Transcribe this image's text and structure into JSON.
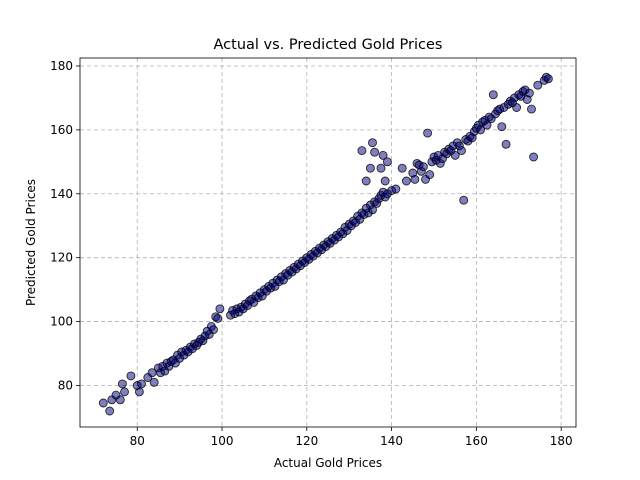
{
  "chart_data": {
    "type": "scatter",
    "title": "Actual vs. Predicted Gold Prices",
    "xlabel": "Actual Gold Prices",
    "ylabel": "Predicted Gold Prices",
    "xlim": [
      66.5,
      183.5
    ],
    "ylim": [
      67,
      182.5
    ],
    "xticks": [
      80,
      100,
      120,
      140,
      160,
      180
    ],
    "yticks": [
      80,
      100,
      120,
      140,
      160,
      180
    ],
    "grid": true,
    "marker_color": "#00007f",
    "marker_edge_color": "#000000",
    "marker_alpha": 0.5,
    "series": [
      {
        "points": [
          [
            72.0,
            74.5
          ],
          [
            73.5,
            72.0
          ],
          [
            74.0,
            75.5
          ],
          [
            75.0,
            77.0
          ],
          [
            76.0,
            75.5
          ],
          [
            76.5,
            80.5
          ],
          [
            77.0,
            78.0
          ],
          [
            78.5,
            83.0
          ],
          [
            80.0,
            80.0
          ],
          [
            80.5,
            78.0
          ],
          [
            81.0,
            80.5
          ],
          [
            82.5,
            82.5
          ],
          [
            83.5,
            84.0
          ],
          [
            84.0,
            81.0
          ],
          [
            85.0,
            85.5
          ],
          [
            85.5,
            84.0
          ],
          [
            86.0,
            86.0
          ],
          [
            86.5,
            84.5
          ],
          [
            87.0,
            87.0
          ],
          [
            87.5,
            86.0
          ],
          [
            88.0,
            87.5
          ],
          [
            88.5,
            88.0
          ],
          [
            89.0,
            87.0
          ],
          [
            89.5,
            89.5
          ],
          [
            90.0,
            88.5
          ],
          [
            90.5,
            90.5
          ],
          [
            91.0,
            89.5
          ],
          [
            91.5,
            91.0
          ],
          [
            92.0,
            90.5
          ],
          [
            92.5,
            92.0
          ],
          [
            93.0,
            91.5
          ],
          [
            93.5,
            93.0
          ],
          [
            94.0,
            92.5
          ],
          [
            94.5,
            93.5
          ],
          [
            95.0,
            94.5
          ],
          [
            95.5,
            94.0
          ],
          [
            96.0,
            95.5
          ],
          [
            96.5,
            97.0
          ],
          [
            97.0,
            96.0
          ],
          [
            97.5,
            98.5
          ],
          [
            98.0,
            97.5
          ],
          [
            98.5,
            101.5
          ],
          [
            99.0,
            101.0
          ],
          [
            99.5,
            104.0
          ],
          [
            102.0,
            102.0
          ],
          [
            102.5,
            103.5
          ],
          [
            103.0,
            102.5
          ],
          [
            103.5,
            104.0
          ],
          [
            104.0,
            103.0
          ],
          [
            104.5,
            104.5
          ],
          [
            105.0,
            104.0
          ],
          [
            105.5,
            105.5
          ],
          [
            106.0,
            105.0
          ],
          [
            106.5,
            106.5
          ],
          [
            107.0,
            107.0
          ],
          [
            107.5,
            106.0
          ],
          [
            108.0,
            108.0
          ],
          [
            108.5,
            107.5
          ],
          [
            109.0,
            109.0
          ],
          [
            109.5,
            108.0
          ],
          [
            110.0,
            110.0
          ],
          [
            110.5,
            109.5
          ],
          [
            111.0,
            111.0
          ],
          [
            111.5,
            110.5
          ],
          [
            112.0,
            112.0
          ],
          [
            112.5,
            111.0
          ],
          [
            113.0,
            113.0
          ],
          [
            113.5,
            112.5
          ],
          [
            114.0,
            114.0
          ],
          [
            114.5,
            113.0
          ],
          [
            115.0,
            115.0
          ],
          [
            115.5,
            114.5
          ],
          [
            116.0,
            116.0
          ],
          [
            116.5,
            115.5
          ],
          [
            117.0,
            117.0
          ],
          [
            117.5,
            116.5
          ],
          [
            118.0,
            118.0
          ],
          [
            118.5,
            117.5
          ],
          [
            119.0,
            119.0
          ],
          [
            119.5,
            118.5
          ],
          [
            120.0,
            120.0
          ],
          [
            120.5,
            119.5
          ],
          [
            121.0,
            121.0
          ],
          [
            121.5,
            120.5
          ],
          [
            122.0,
            122.0
          ],
          [
            122.5,
            121.5
          ],
          [
            123.0,
            123.0
          ],
          [
            123.5,
            122.5
          ],
          [
            124.0,
            124.0
          ],
          [
            124.5,
            123.5
          ],
          [
            125.0,
            125.0
          ],
          [
            125.5,
            124.5
          ],
          [
            126.0,
            126.0
          ],
          [
            126.5,
            125.5
          ],
          [
            127.0,
            127.0
          ],
          [
            127.5,
            126.5
          ],
          [
            128.0,
            128.0
          ],
          [
            128.5,
            127.5
          ],
          [
            129.0,
            129.5
          ],
          [
            129.5,
            128.5
          ],
          [
            130.0,
            130.5
          ],
          [
            130.5,
            130.0
          ],
          [
            131.0,
            131.5
          ],
          [
            131.5,
            131.0
          ],
          [
            132.0,
            133.0
          ],
          [
            132.5,
            132.0
          ],
          [
            133.0,
            134.0
          ],
          [
            133.5,
            133.5
          ],
          [
            134.0,
            135.5
          ],
          [
            134.5,
            134.0
          ],
          [
            135.0,
            136.5
          ],
          [
            135.5,
            135.0
          ],
          [
            136.0,
            137.5
          ],
          [
            136.5,
            137.0
          ],
          [
            137.0,
            138.5
          ],
          [
            137.5,
            139.5
          ],
          [
            138.0,
            140.5
          ],
          [
            138.5,
            139.0
          ],
          [
            139.0,
            140.0
          ],
          [
            140.0,
            141.0
          ],
          [
            141.0,
            141.5
          ],
          [
            133.0,
            153.5
          ],
          [
            134.0,
            144.0
          ],
          [
            135.0,
            148.0
          ],
          [
            135.5,
            156.0
          ],
          [
            136.0,
            153.0
          ],
          [
            137.5,
            148.0
          ],
          [
            138.0,
            152.0
          ],
          [
            138.5,
            144.0
          ],
          [
            139.0,
            150.0
          ],
          [
            142.5,
            148.0
          ],
          [
            143.5,
            144.0
          ],
          [
            145.0,
            146.5
          ],
          [
            145.5,
            144.5
          ],
          [
            146.0,
            149.5
          ],
          [
            146.5,
            149.0
          ],
          [
            147.0,
            147.0
          ],
          [
            147.5,
            148.5
          ],
          [
            148.0,
            144.5
          ],
          [
            148.5,
            159.0
          ],
          [
            149.0,
            146.0
          ],
          [
            149.5,
            150.0
          ],
          [
            150.0,
            151.5
          ],
          [
            150.5,
            150.5
          ],
          [
            151.0,
            152.0
          ],
          [
            151.5,
            149.5
          ],
          [
            152.0,
            151.0
          ],
          [
            152.5,
            153.0
          ],
          [
            153.0,
            152.5
          ],
          [
            153.5,
            154.0
          ],
          [
            154.0,
            153.5
          ],
          [
            154.5,
            155.0
          ],
          [
            155.0,
            152.0
          ],
          [
            155.5,
            156.0
          ],
          [
            156.0,
            155.0
          ],
          [
            156.5,
            153.5
          ],
          [
            157.0,
            138.0
          ],
          [
            157.5,
            157.0
          ],
          [
            158.0,
            156.5
          ],
          [
            158.5,
            158.0
          ],
          [
            159.0,
            157.5
          ],
          [
            159.5,
            159.5
          ],
          [
            160.0,
            160.5
          ],
          [
            160.5,
            161.5
          ],
          [
            161.0,
            160.0
          ],
          [
            161.5,
            162.5
          ],
          [
            162.0,
            163.0
          ],
          [
            162.5,
            161.5
          ],
          [
            163.0,
            164.0
          ],
          [
            163.5,
            163.5
          ],
          [
            164.0,
            171.0
          ],
          [
            164.5,
            165.0
          ],
          [
            165.0,
            166.0
          ],
          [
            165.5,
            166.5
          ],
          [
            166.0,
            161.0
          ],
          [
            166.5,
            167.0
          ],
          [
            167.0,
            155.5
          ],
          [
            167.5,
            168.0
          ],
          [
            168.0,
            169.0
          ],
          [
            168.5,
            168.5
          ],
          [
            169.0,
            170.0
          ],
          [
            169.5,
            167.0
          ],
          [
            170.0,
            171.0
          ],
          [
            170.5,
            170.5
          ],
          [
            171.0,
            172.0
          ],
          [
            171.5,
            172.5
          ],
          [
            172.0,
            169.5
          ],
          [
            172.5,
            171.5
          ],
          [
            173.0,
            166.5
          ],
          [
            173.5,
            151.5
          ],
          [
            174.5,
            174.0
          ],
          [
            176.0,
            175.5
          ],
          [
            176.5,
            176.5
          ],
          [
            177.0,
            176.0
          ]
        ]
      }
    ]
  }
}
